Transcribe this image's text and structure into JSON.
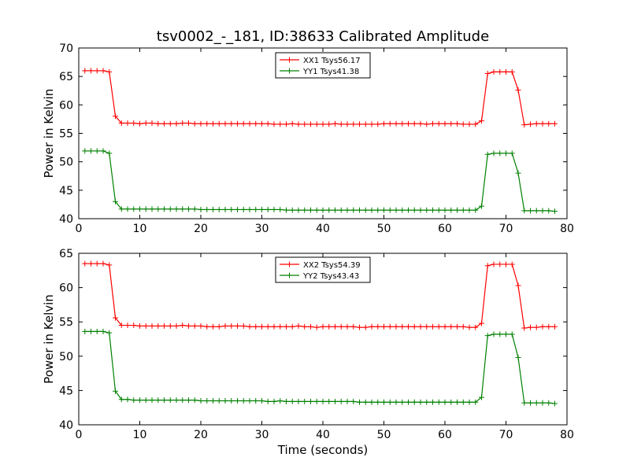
{
  "figure": {
    "title": "tsv0002_-_181, ID:38633 Calibrated Amplitude"
  },
  "colors": {
    "red": "#ff0000",
    "green": "#008000"
  },
  "chart_data": [
    {
      "type": "line",
      "title": "tsv0002_-_181, ID:38633 Calibrated Amplitude",
      "xlabel": "",
      "ylabel": "Power in Kelvin",
      "xlim": [
        0,
        80
      ],
      "ylim": [
        40,
        70
      ],
      "xticks": [
        "0",
        "10",
        "20",
        "30",
        "40",
        "50",
        "60",
        "70",
        "80"
      ],
      "yticks": [
        "40",
        "45",
        "50",
        "55",
        "60",
        "65",
        "70"
      ],
      "grid": false,
      "legend": "top-center",
      "x": [
        1,
        2,
        3,
        4,
        5,
        6,
        7,
        8,
        9,
        10,
        11,
        12,
        13,
        14,
        15,
        16,
        17,
        18,
        19,
        20,
        21,
        22,
        23,
        24,
        25,
        26,
        27,
        28,
        29,
        30,
        31,
        32,
        33,
        34,
        35,
        36,
        37,
        38,
        39,
        40,
        41,
        42,
        43,
        44,
        45,
        46,
        47,
        48,
        49,
        50,
        51,
        52,
        53,
        54,
        55,
        56,
        57,
        58,
        59,
        60,
        61,
        62,
        63,
        64,
        65,
        66,
        67,
        68,
        69,
        70,
        71,
        72,
        73,
        74,
        75,
        76,
        77,
        78
      ],
      "series": [
        {
          "name": "XX1 Tsys56.17",
          "color": "#ff0000",
          "values": [
            66.0,
            66.0,
            66.0,
            66.0,
            65.8,
            58.0,
            56.8,
            56.8,
            56.8,
            56.7,
            56.8,
            56.8,
            56.7,
            56.7,
            56.7,
            56.7,
            56.8,
            56.8,
            56.7,
            56.7,
            56.7,
            56.7,
            56.7,
            56.7,
            56.7,
            56.7,
            56.7,
            56.7,
            56.7,
            56.7,
            56.7,
            56.6,
            56.6,
            56.6,
            56.7,
            56.6,
            56.6,
            56.6,
            56.6,
            56.6,
            56.6,
            56.7,
            56.6,
            56.6,
            56.6,
            56.6,
            56.6,
            56.6,
            56.6,
            56.7,
            56.7,
            56.7,
            56.7,
            56.7,
            56.7,
            56.7,
            56.6,
            56.7,
            56.7,
            56.7,
            56.7,
            56.7,
            56.6,
            56.6,
            56.6,
            57.2,
            65.5,
            65.8,
            65.8,
            65.8,
            65.8,
            62.6,
            56.5,
            56.6,
            56.7,
            56.7,
            56.7,
            56.7
          ]
        },
        {
          "name": "YY1 Tsys41.38",
          "color": "#008000",
          "values": [
            51.9,
            51.9,
            51.9,
            51.9,
            51.5,
            43.0,
            41.7,
            41.7,
            41.7,
            41.7,
            41.7,
            41.7,
            41.7,
            41.7,
            41.7,
            41.7,
            41.7,
            41.7,
            41.7,
            41.6,
            41.6,
            41.6,
            41.6,
            41.6,
            41.6,
            41.6,
            41.6,
            41.6,
            41.6,
            41.6,
            41.6,
            41.6,
            41.6,
            41.5,
            41.5,
            41.5,
            41.5,
            41.5,
            41.5,
            41.5,
            41.5,
            41.5,
            41.5,
            41.5,
            41.5,
            41.5,
            41.5,
            41.5,
            41.5,
            41.5,
            41.5,
            41.5,
            41.5,
            41.5,
            41.5,
            41.5,
            41.5,
            41.5,
            41.5,
            41.5,
            41.5,
            41.5,
            41.5,
            41.5,
            41.5,
            42.2,
            51.3,
            51.5,
            51.5,
            51.5,
            51.5,
            48.0,
            41.4,
            41.4,
            41.4,
            41.4,
            41.4,
            41.3
          ]
        }
      ]
    },
    {
      "type": "line",
      "title": "",
      "xlabel": "Time (seconds)",
      "ylabel": "Power in Kelvin",
      "xlim": [
        0,
        80
      ],
      "ylim": [
        40,
        65
      ],
      "xticks": [
        "0",
        "10",
        "20",
        "30",
        "40",
        "50",
        "60",
        "70",
        "80"
      ],
      "yticks": [
        "40",
        "45",
        "50",
        "55",
        "60",
        "65"
      ],
      "grid": false,
      "legend": "top-center",
      "x": [
        1,
        2,
        3,
        4,
        5,
        6,
        7,
        8,
        9,
        10,
        11,
        12,
        13,
        14,
        15,
        16,
        17,
        18,
        19,
        20,
        21,
        22,
        23,
        24,
        25,
        26,
        27,
        28,
        29,
        30,
        31,
        32,
        33,
        34,
        35,
        36,
        37,
        38,
        39,
        40,
        41,
        42,
        43,
        44,
        45,
        46,
        47,
        48,
        49,
        50,
        51,
        52,
        53,
        54,
        55,
        56,
        57,
        58,
        59,
        60,
        61,
        62,
        63,
        64,
        65,
        66,
        67,
        68,
        69,
        70,
        71,
        72,
        73,
        74,
        75,
        76,
        77,
        78
      ],
      "series": [
        {
          "name": "XX2 Tsys54.39",
          "color": "#ff0000",
          "values": [
            63.5,
            63.5,
            63.5,
            63.5,
            63.3,
            55.6,
            54.5,
            54.5,
            54.5,
            54.4,
            54.4,
            54.4,
            54.4,
            54.4,
            54.4,
            54.4,
            54.5,
            54.4,
            54.4,
            54.4,
            54.3,
            54.3,
            54.3,
            54.4,
            54.4,
            54.4,
            54.4,
            54.3,
            54.3,
            54.3,
            54.3,
            54.3,
            54.3,
            54.3,
            54.3,
            54.4,
            54.3,
            54.3,
            54.2,
            54.3,
            54.3,
            54.3,
            54.3,
            54.3,
            54.3,
            54.2,
            54.2,
            54.3,
            54.3,
            54.3,
            54.3,
            54.3,
            54.3,
            54.3,
            54.3,
            54.3,
            54.3,
            54.3,
            54.3,
            54.3,
            54.3,
            54.3,
            54.3,
            54.2,
            54.2,
            54.8,
            63.2,
            63.4,
            63.4,
            63.4,
            63.4,
            60.3,
            54.1,
            54.2,
            54.2,
            54.3,
            54.3,
            54.3
          ]
        },
        {
          "name": "YY2 Tsys43.43",
          "color": "#008000",
          "values": [
            53.6,
            53.6,
            53.6,
            53.6,
            53.4,
            44.9,
            43.7,
            43.7,
            43.6,
            43.6,
            43.6,
            43.6,
            43.6,
            43.6,
            43.6,
            43.6,
            43.6,
            43.6,
            43.6,
            43.5,
            43.5,
            43.5,
            43.5,
            43.5,
            43.5,
            43.5,
            43.5,
            43.5,
            43.5,
            43.5,
            43.4,
            43.4,
            43.5,
            43.4,
            43.4,
            43.4,
            43.4,
            43.4,
            43.4,
            43.4,
            43.4,
            43.4,
            43.4,
            43.4,
            43.4,
            43.3,
            43.3,
            43.3,
            43.3,
            43.3,
            43.3,
            43.3,
            43.3,
            43.3,
            43.3,
            43.3,
            43.3,
            43.3,
            43.3,
            43.3,
            43.3,
            43.3,
            43.3,
            43.3,
            43.3,
            44.0,
            53.0,
            53.2,
            53.2,
            53.2,
            53.2,
            49.8,
            43.2,
            43.2,
            43.2,
            43.2,
            43.2,
            43.1
          ]
        }
      ]
    }
  ]
}
